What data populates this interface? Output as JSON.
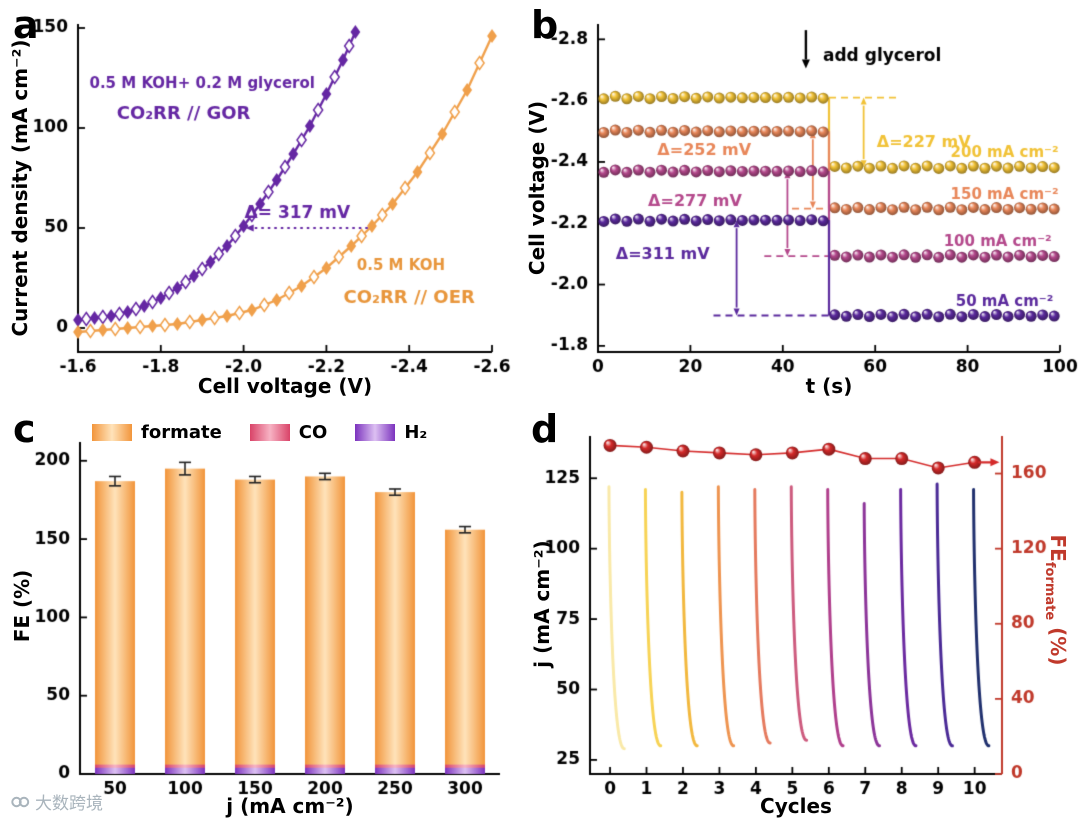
{
  "panels": {
    "a": {
      "letter": "a",
      "xlabel": "Cell voltage (V)",
      "ylabel": "Current density (mA cm⁻²)"
    },
    "b": {
      "letter": "b",
      "xlabel": "t (s)",
      "ylabel": "Cell voltage (V)"
    },
    "c": {
      "letter": "c",
      "xlabel": "j (mA cm⁻²)",
      "ylabel": "FE (%)"
    },
    "d": {
      "letter": "d",
      "xlabel": "Cycles",
      "ylabel_left": "j (mA cm⁻²)",
      "ylabel_right_main": "FE",
      "ylabel_right_sub": "formate",
      "ylabel_right_unit": " (%)",
      "ylabel_right_color": "#c0392b"
    }
  },
  "watermark": {
    "text": "大数跨境"
  },
  "chart_data": [
    {
      "panel": "a",
      "type": "line",
      "xlabel": "Cell voltage (V)",
      "ylabel": "Current density (mA cm⁻²)",
      "x_range": [
        -1.6,
        -2.6
      ],
      "y_range": [
        -12,
        152
      ],
      "x_tick_vals": [
        -1.6,
        -1.8,
        -2.0,
        -2.2,
        -2.4,
        -2.6
      ],
      "x_tick_labels": [
        "-1.6",
        "-1.8",
        "-2.0",
        "-2.2",
        "-2.4",
        "-2.6"
      ],
      "y_ticks": [
        0,
        50,
        100,
        150
      ],
      "series": [
        {
          "name": "CO₂RR // GOR",
          "electrolyte": "0.5 M KOH+ 0.2 M glycerol",
          "color": "#6527a3",
          "marker": "diamond",
          "x": [
            -1.6,
            -1.64,
            -1.68,
            -1.72,
            -1.76,
            -1.8,
            -1.84,
            -1.88,
            -1.92,
            -1.96,
            -2.0,
            -2.04,
            -2.08,
            -2.12,
            -2.16,
            -2.2,
            -2.24,
            -2.27
          ],
          "y": [
            4,
            5,
            6,
            8,
            11,
            15,
            20,
            26,
            33,
            41,
            51,
            62,
            74,
            87,
            101,
            117,
            134,
            148
          ]
        },
        {
          "name": "CO₂RR // OER",
          "electrolyte": "0.5 M KOH",
          "color": "#f0a04b",
          "marker": "diamond",
          "x": [
            -1.6,
            -1.66,
            -1.72,
            -1.78,
            -1.84,
            -1.9,
            -1.96,
            -2.02,
            -2.08,
            -2.14,
            -2.2,
            -2.26,
            -2.31,
            -2.36,
            -2.42,
            -2.48,
            -2.54,
            -2.6
          ],
          "y": [
            -2,
            -1,
            0,
            1,
            2,
            4,
            6,
            9,
            14,
            21,
            30,
            41,
            51,
            62,
            78,
            97,
            119,
            146
          ]
        }
      ],
      "annotations": [
        {
          "text": "0.5 M KOH+ 0.2 M glycerol",
          "color": "#6527a3",
          "x": -1.9,
          "y": 122,
          "size": 15
        },
        {
          "text": "CO₂RR // GOR",
          "color": "#6527a3",
          "x": -1.855,
          "y": 107,
          "size": 18
        },
        {
          "text": "0.5 M KOH",
          "color": "#e8963c",
          "x": -2.38,
          "y": 31,
          "size": 15
        },
        {
          "text": "CO₂RR // OER",
          "color": "#e8963c",
          "x": -2.4,
          "y": 15,
          "size": 18
        },
        {
          "text": "Δ= 317 mV",
          "color": "#6527a3",
          "x": -2.13,
          "y": 57,
          "size": 17
        }
      ],
      "delta_arrow": {
        "y": 50,
        "x_from": -2.3,
        "x_to": -2.005
      }
    },
    {
      "panel": "b",
      "type": "scatter",
      "xlabel": "t (s)",
      "ylabel": "Cell voltage (V)",
      "x_range": [
        0,
        100
      ],
      "x_ticks": [
        0,
        20,
        40,
        60,
        80,
        100
      ],
      "y_tick_vals": [
        -2.8,
        -2.6,
        -2.4,
        -2.2,
        -2.0,
        -1.8
      ],
      "y_tick_labels": [
        "-2.8",
        "-2.6",
        "-2.4",
        "-2.2",
        "-2.0",
        "-1.8"
      ],
      "y_range_bottom_top": [
        -1.78,
        -2.85
      ],
      "step_time": 50,
      "dot_spacing_s": 2.5,
      "series": [
        {
          "label": "200 mA cm⁻²",
          "color": "#f1c237",
          "before_V": -2.61,
          "after_V": -2.383,
          "delta_label": "Δ=227 mV",
          "delta_xy": [
            70.5,
            -2.462
          ],
          "arrow_x": 57.5,
          "dash": {
            "y": -2.61,
            "x1": 50,
            "x2": 65
          },
          "label_xy": [
            88,
            -2.428
          ]
        },
        {
          "label": "150 mA cm⁻²",
          "color": "#e8875a",
          "before_V": -2.5,
          "after_V": -2.248,
          "delta_label": "Δ=252 mV",
          "delta_xy": [
            23,
            -2.437
          ],
          "arrow_x": 46.5,
          "dash": {
            "y": -2.248,
            "x1": 42,
            "x2": 50
          },
          "label_xy": [
            88,
            -2.292
          ]
        },
        {
          "label": "100 mA cm⁻²",
          "color": "#b4498c",
          "before_V": -2.37,
          "after_V": -2.093,
          "delta_label": "Δ=277 mV",
          "delta_xy": [
            21,
            -2.27
          ],
          "arrow_x": 41,
          "dash": {
            "y": -2.093,
            "x1": 36,
            "x2": 50
          },
          "label_xy": [
            86.5,
            -2.138
          ]
        },
        {
          "label": "50 mA cm⁻²",
          "color": "#5b2a9d",
          "before_V": -2.21,
          "after_V": -1.899,
          "delta_label": "Δ=311 mV",
          "delta_xy": [
            14,
            -2.097
          ],
          "arrow_x": 30,
          "dash": {
            "y": -1.899,
            "x1": 25,
            "x2": 50
          },
          "label_xy": [
            88,
            -1.942
          ]
        }
      ],
      "add_glycerol": {
        "text": "add glycerol",
        "arrow_x": 45,
        "arrow_from_V": -2.83,
        "arrow_to_V": -2.705,
        "text_xy": [
          61.5,
          -2.745
        ]
      }
    },
    {
      "panel": "c",
      "type": "bar",
      "xlabel": "j (mA cm⁻²)",
      "ylabel": "FE (%)",
      "categories": [
        "50",
        "100",
        "150",
        "200",
        "250",
        "300"
      ],
      "y_ticks": [
        0,
        50,
        100,
        150,
        200
      ],
      "y_range": [
        0,
        212
      ],
      "series": [
        {
          "name": "formate",
          "color_edge": "#f2953b",
          "color_mid": "#ffe3ba",
          "values": [
            187,
            195,
            188,
            190,
            180,
            156
          ],
          "errors": [
            3,
            4,
            2,
            2,
            2,
            2
          ]
        },
        {
          "name": "CO",
          "color_edge": "#d94368",
          "color_mid": "#f7b3c4",
          "values": [
            6,
            6,
            6,
            6,
            6,
            6
          ]
        },
        {
          "name": "H₂",
          "color_edge": "#7c33be",
          "color_mid": "#dcc0f2",
          "values": [
            4,
            4,
            4,
            4,
            4,
            4
          ]
        }
      ]
    },
    {
      "panel": "d",
      "type": "line+scatter",
      "xlabel": "Cycles",
      "x_range": [
        -0.55,
        10.75
      ],
      "x_ticks": [
        0,
        1,
        2,
        3,
        4,
        5,
        6,
        7,
        8,
        9,
        10
      ],
      "left_y": {
        "label": "j (mA cm⁻²)",
        "ticks": [
          25,
          50,
          75,
          100,
          125
        ],
        "range": [
          20,
          140
        ]
      },
      "right_y": {
        "label": "FE formate (%)",
        "ticks": [
          0,
          40,
          80,
          120,
          160
        ],
        "range": [
          0,
          180
        ],
        "color": "#c0392b"
      },
      "cycle_curves": {
        "starts": [
          122,
          121,
          120,
          122,
          121,
          122,
          121,
          116,
          121,
          123,
          121
        ],
        "ends": [
          29,
          30,
          30,
          30,
          31,
          32,
          30,
          30,
          30,
          30,
          30
        ],
        "colors": [
          "#f9e9a8",
          "#f7d355",
          "#f2b83e",
          "#ee9450",
          "#e57a5e",
          "#cd5b7e",
          "#b03f8c",
          "#8c3499",
          "#6b2aa0",
          "#4a2a96",
          "#20306e"
        ]
      },
      "fe_dots": {
        "x": [
          0,
          1,
          2,
          3,
          4,
          5,
          6,
          7,
          8,
          9,
          10
        ],
        "values": [
          175,
          174,
          172,
          171,
          170,
          171,
          173,
          168,
          168,
          163,
          166
        ],
        "color": "#d42a2a"
      },
      "arrow": {
        "fe_level": 166,
        "x_from": 10.12,
        "x_to": 10.68
      }
    }
  ]
}
